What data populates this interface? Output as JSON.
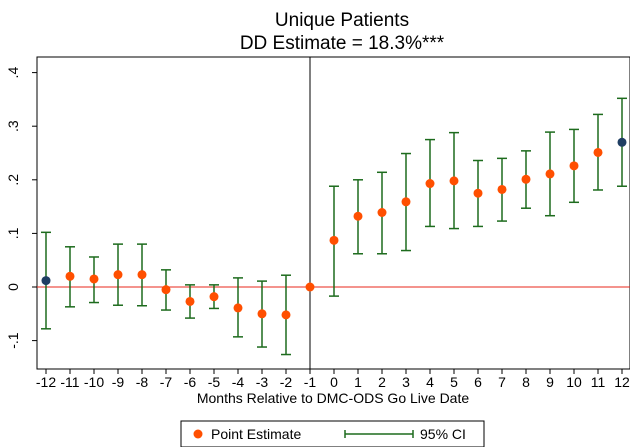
{
  "chart_data": {
    "type": "scatter",
    "title": "Unique Patients",
    "subtitle": "DD Estimate = 18.3%***",
    "xlabel": "Months Relative to DMC-ODS Go Live Date",
    "ylabel": "",
    "xlim": [
      -12,
      12
    ],
    "ylim": [
      -0.15,
      0.43
    ],
    "x_ticks": [
      -12,
      -11,
      -10,
      -9,
      -8,
      -7,
      -6,
      -5,
      -4,
      -3,
      -2,
      -1,
      0,
      1,
      2,
      3,
      4,
      5,
      6,
      7,
      8,
      9,
      10,
      11,
      12
    ],
    "y_ticks": [
      -0.1,
      0,
      0.1,
      0.2,
      0.3,
      0.4
    ],
    "y_tick_labels": [
      "-.1",
      "0",
      ".1",
      ".2",
      ".3",
      ".4"
    ],
    "grid": false,
    "legend_position": "bottom",
    "reference_lines": {
      "horizontal_y": 0,
      "horizontal_color": "#e8271b",
      "vertical_x": -1,
      "vertical_color": "#000000"
    },
    "series": [
      {
        "name": "Point Estimate",
        "color": "#ff4f00",
        "highlight_color": "#1f3e63",
        "highlight_x": [
          -12,
          12
        ],
        "x": [
          -12,
          -11,
          -10,
          -9,
          -8,
          -7,
          -6,
          -5,
          -4,
          -3,
          -2,
          -1,
          0,
          1,
          2,
          3,
          4,
          5,
          6,
          7,
          8,
          9,
          10,
          11,
          12
        ],
        "y": [
          0.012,
          0.02,
          0.015,
          0.023,
          0.023,
          -0.005,
          -0.027,
          -0.018,
          -0.039,
          -0.05,
          -0.052,
          0.0,
          0.087,
          0.132,
          0.139,
          0.159,
          0.193,
          0.198,
          0.175,
          0.182,
          0.201,
          0.211,
          0.226,
          0.251,
          0.27
        ]
      },
      {
        "name": "95% CI",
        "color": "#1d6b1d",
        "x": [
          -12,
          -11,
          -10,
          -9,
          -8,
          -7,
          -6,
          -5,
          -4,
          -3,
          -2,
          0,
          1,
          2,
          3,
          4,
          5,
          6,
          7,
          8,
          9,
          10,
          11,
          12
        ],
        "lower": [
          -0.078,
          -0.037,
          -0.029,
          -0.034,
          -0.035,
          -0.043,
          -0.058,
          -0.04,
          -0.093,
          -0.112,
          -0.126,
          -0.017,
          0.062,
          0.062,
          0.068,
          0.113,
          0.109,
          0.113,
          0.123,
          0.147,
          0.133,
          0.158,
          0.181,
          0.188
        ],
        "upper": [
          0.102,
          0.075,
          0.056,
          0.08,
          0.08,
          0.032,
          0.004,
          0.004,
          0.017,
          0.011,
          0.022,
          0.188,
          0.2,
          0.214,
          0.249,
          0.275,
          0.288,
          0.236,
          0.24,
          0.254,
          0.289,
          0.294,
          0.322,
          0.352
        ]
      }
    ]
  }
}
